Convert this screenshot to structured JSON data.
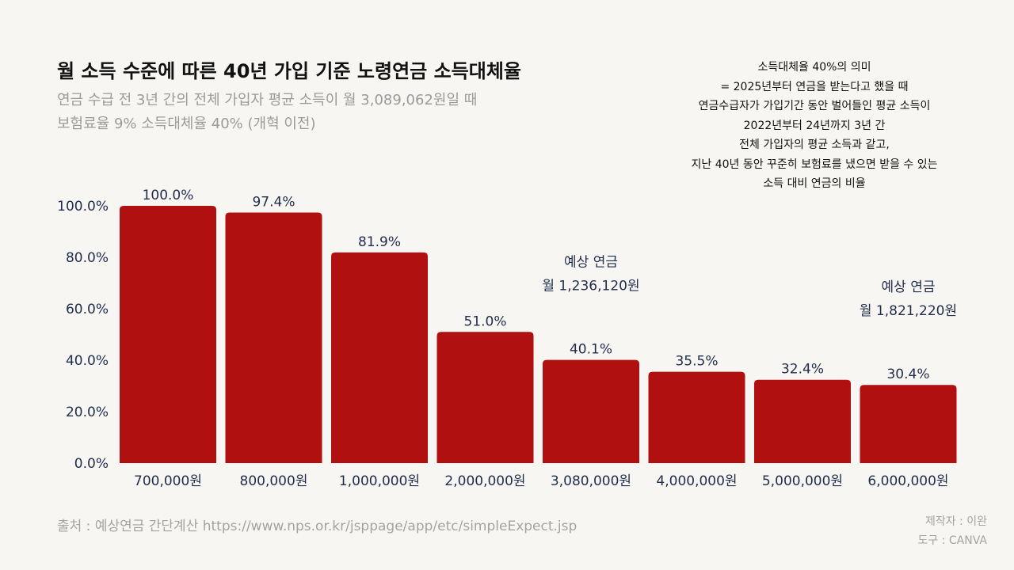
{
  "header": {
    "title": "월 소득 수준에 따른 40년 가입 기준 노령연금 소득대체율",
    "subtitle_lines": [
      "연금 수급 전 3년 간의 전체 가입자 평균 소득이 월 3,089,062원일 때",
      "보험료율 9% 소득대체율 40% (개혁 이전)"
    ]
  },
  "note": {
    "lines": [
      "소득대체율 40%의 의미",
      "= 2025년부터 연금을 받는다고 했을 때",
      "연금수급자가 가입기간 동안 벌어들인 평균 소득이",
      "2022년부터 24년까지 3년 간",
      "전체 가입자의 평균 소득과 같고,",
      "지난 40년 동안 꾸준히 보험료를 냈으면 받을 수 있는",
      "소득 대비 연금의 비율"
    ]
  },
  "chart_data": {
    "type": "bar",
    "title": "",
    "xlabel": "",
    "ylabel": "",
    "ylim": [
      0,
      100
    ],
    "yticks": [
      0,
      20,
      40,
      60,
      80,
      100
    ],
    "ytick_labels": [
      "0.0%",
      "20.0%",
      "40.0%",
      "60.0%",
      "80.0%",
      "100.0%"
    ],
    "categories": [
      "700,000원",
      "800,000원",
      "1,000,000원",
      "2,000,000원",
      "3,080,000원",
      "4,000,000원",
      "5,000,000원",
      "6,000,000원"
    ],
    "values": [
      100.0,
      97.4,
      81.9,
      51.0,
      40.1,
      35.5,
      32.4,
      30.4
    ],
    "value_labels": [
      "100.0%",
      "97.4%",
      "81.9%",
      "51.0%",
      "40.1%",
      "35.5%",
      "32.4%",
      "30.4%"
    ],
    "bar_color": "#b01010",
    "value_label_color": "#1f2d4d",
    "grid": false,
    "annotations": [
      {
        "category_index": 4,
        "lines": [
          "예상 연금",
          "월 1,236,120원"
        ]
      },
      {
        "category_index": 7,
        "lines": [
          "예상 연금",
          "월 1,821,220원"
        ]
      }
    ]
  },
  "footer": {
    "source": "출처 : 예상연금 간단계산 https://www.nps.or.kr/jsppage/app/etc/simpleExpect.jsp",
    "credits": [
      "제작자 : 이완",
      "도구 : CANVA"
    ]
  }
}
